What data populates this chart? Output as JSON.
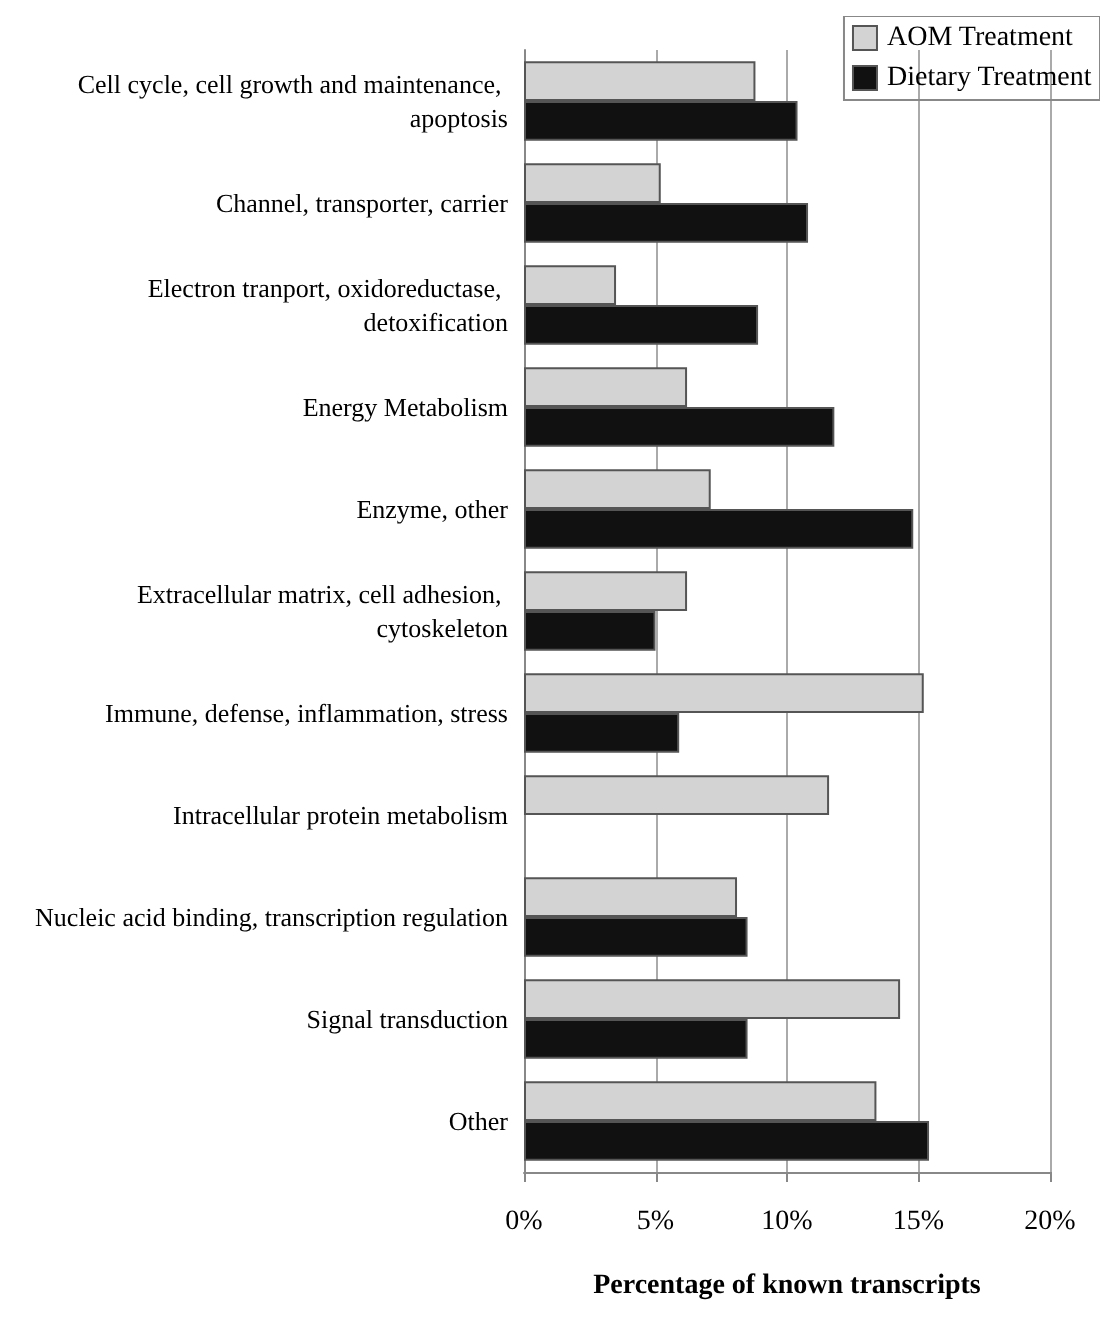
{
  "chart_data": {
    "type": "bar",
    "orientation": "horizontal",
    "xlabel": "Percentage of known transcripts",
    "categories": [
      "Cell cycle, cell growth and maintenance, apoptosis",
      "Channel, transporter, carrier",
      "Electron tranport, oxidoreductase, detoxification",
      "Energy Metabolism",
      "Enzyme, other",
      "Extracellular matrix, cell adhesion, cytoskeleton",
      "Immune, defense, inflammation, stress",
      "Intracellular protein metabolism",
      "Nucleic acid binding, transcription regulation",
      "Signal transduction",
      "Other"
    ],
    "series": [
      {
        "name": "AOM Treatment",
        "color": "#d3d3d3",
        "values": [
          8.8,
          5.2,
          3.5,
          6.2,
          7.1,
          6.2,
          15.2,
          11.6,
          8.1,
          14.3,
          13.4
        ]
      },
      {
        "name": "Dietary Treatment",
        "color": "#111111",
        "values": [
          10.4,
          10.8,
          8.9,
          11.8,
          14.8,
          5.0,
          5.9,
          null,
          8.5,
          8.5,
          15.4
        ]
      }
    ],
    "xlim": [
      0,
      20
    ],
    "xticks": [
      {
        "value": 0,
        "label": "0%"
      },
      {
        "value": 5,
        "label": "5%"
      },
      {
        "value": 10,
        "label": "10%"
      },
      {
        "value": 15,
        "label": "15%"
      },
      {
        "value": 20,
        "label": "20%"
      }
    ],
    "grid": "x",
    "legend": "top right"
  }
}
